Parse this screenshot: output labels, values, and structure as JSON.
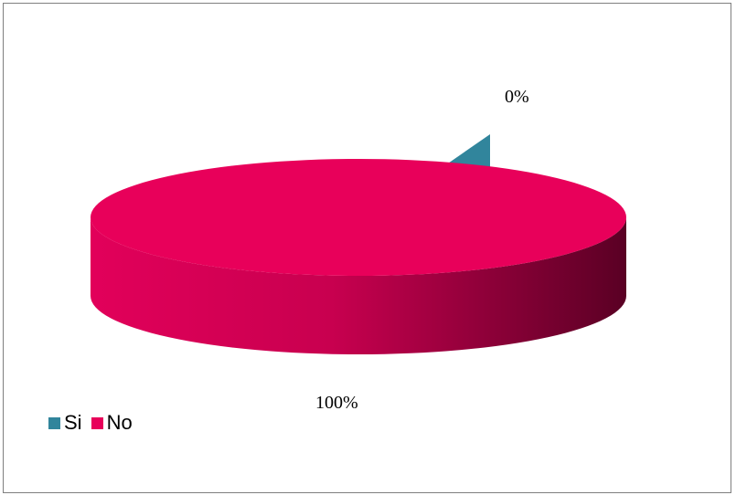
{
  "chart_data": {
    "type": "pie",
    "categories": [
      "Si",
      "No"
    ],
    "values": [
      0,
      100
    ],
    "data_labels": [
      "0%",
      "100%"
    ],
    "colors": {
      "Si": "#31859c",
      "No": "#e8005a"
    },
    "legend": {
      "position": "bottom-left",
      "items": [
        "Si",
        "No"
      ]
    },
    "style": "3d",
    "title": ""
  }
}
